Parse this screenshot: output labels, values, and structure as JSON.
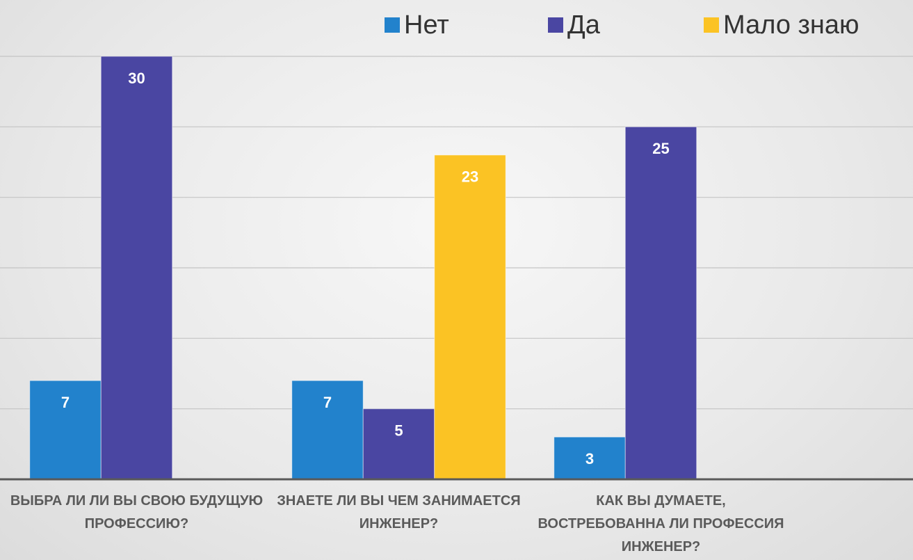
{
  "chart_data": {
    "type": "bar",
    "categories": [
      "ВЫБРА ЛИ ЛИ ВЫ СВОЮ БУДУЩУЮ ПРОФЕССИЮ?",
      "ЗНАЕТЕ ЛИ ВЫ ЧЕМ ЗАНИМАЕТСЯ ИНЖЕНЕР?",
      "КАК ВЫ ДУМАЕТЕ, ВОСТРЕБОВАННА ЛИ ПРОФЕССИЯ ИНЖЕНЕР?"
    ],
    "series": [
      {
        "name": "Нет",
        "color": "#2282cc",
        "values": [
          7,
          7,
          3
        ]
      },
      {
        "name": "Да",
        "color": "#4a46a2",
        "values": [
          30,
          5,
          25
        ]
      },
      {
        "name": "Мало знаю",
        "color": "#fbc324",
        "values": [
          null,
          23,
          null
        ]
      }
    ],
    "ylim": [
      0,
      30
    ],
    "yticks": [
      0,
      5,
      10,
      15,
      20,
      25,
      30
    ],
    "grid": true,
    "legend": "top"
  }
}
